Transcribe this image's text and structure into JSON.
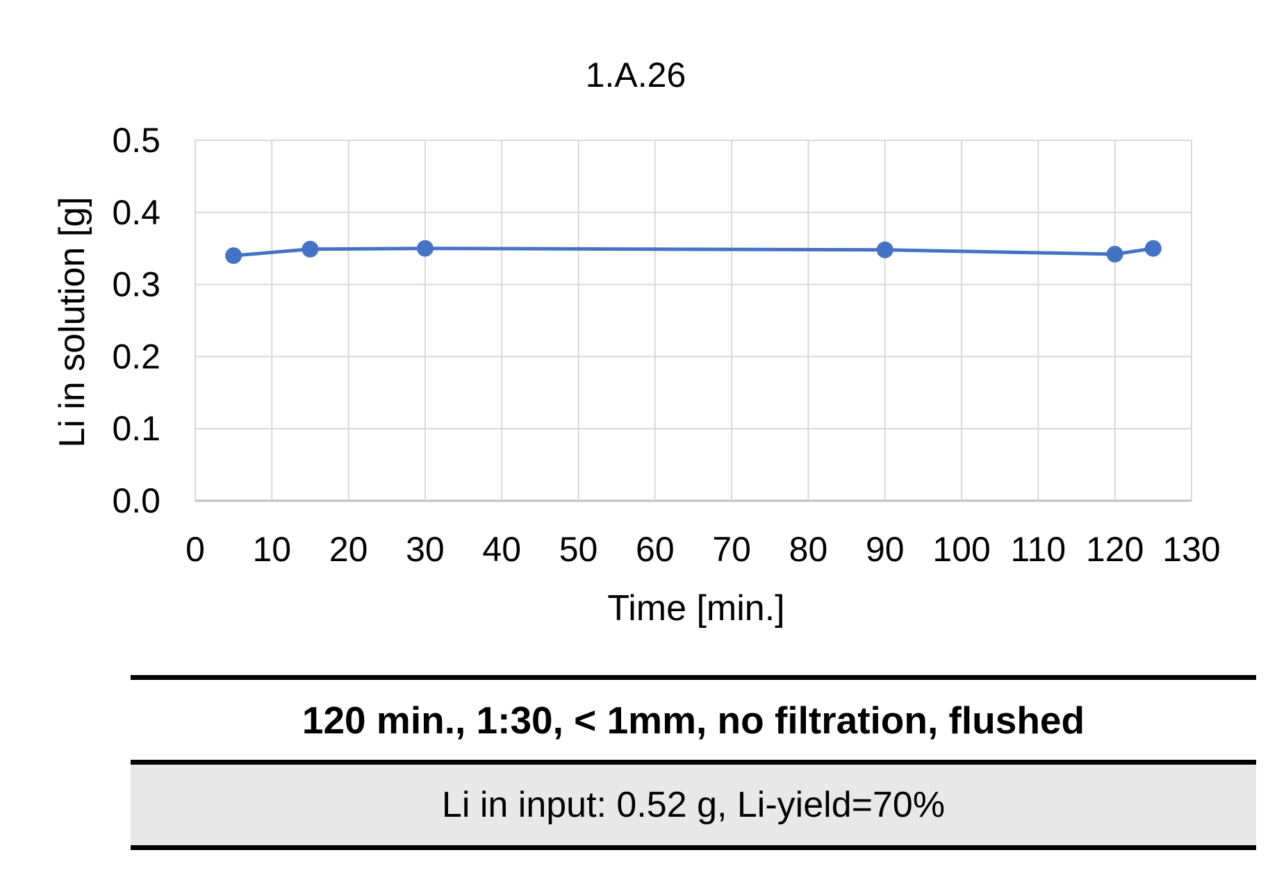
{
  "chart_data": {
    "type": "line",
    "title": "1.A.26",
    "xlabel": "Time [min.]",
    "ylabel": "Li in solution [g]",
    "xlim": [
      0,
      130
    ],
    "ylim": [
      0,
      0.5
    ],
    "x_ticks": [
      "0",
      "10",
      "20",
      "30",
      "40",
      "50",
      "60",
      "70",
      "80",
      "90",
      "100",
      "110",
      "120",
      "130"
    ],
    "y_ticks": [
      "0.0",
      "0.1",
      "0.2",
      "0.3",
      "0.4",
      "0.5"
    ],
    "grid": true,
    "legend": "none",
    "series": [
      {
        "color": "#4472c4",
        "x": [
          5,
          15,
          30,
          90,
          120,
          125
        ],
        "values": [
          0.34,
          0.349,
          0.35,
          0.348,
          0.342,
          0.35
        ]
      }
    ]
  },
  "table": {
    "heading": "120 min., 1:30, < 1mm, no filtration, flushed",
    "detail": "Li in input: 0.52 g, Li-yield=70%"
  }
}
